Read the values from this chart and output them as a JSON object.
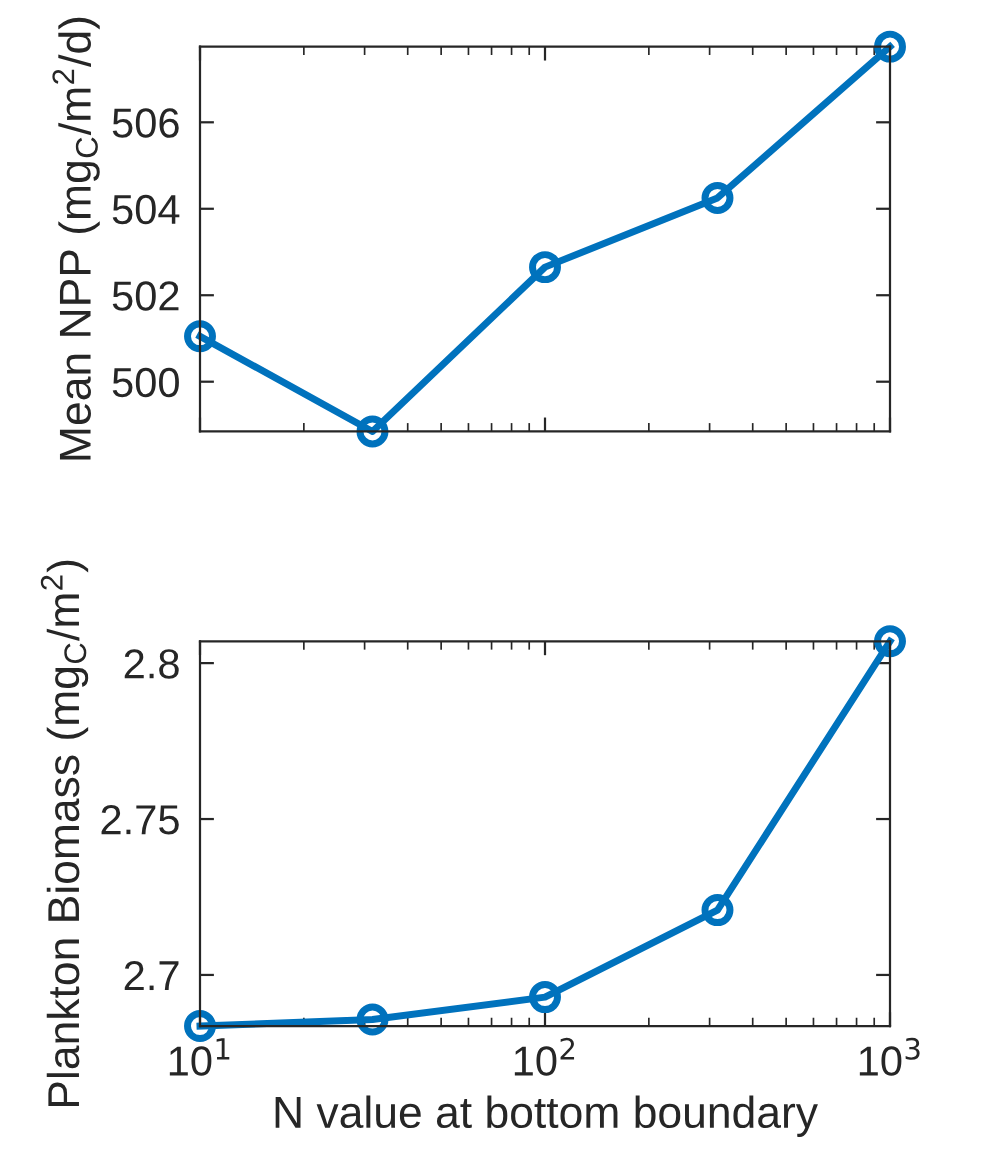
{
  "chart_data": [
    {
      "type": "line",
      "ylabel": "Mean NPP (mg$_{C}$/m$^{2}$/d)",
      "x": [
        10,
        31.62,
        100,
        316.2,
        1000
      ],
      "series": [
        {
          "color": "#0072bd",
          "values": [
            501.05,
            498.85,
            502.65,
            504.25,
            507.75
          ]
        }
      ],
      "log": "x",
      "xlim": [
        10,
        1000
      ],
      "xticks": [
        {
          "value": 10,
          "label": null
        },
        {
          "value": 100,
          "label": null
        },
        {
          "value": 1000,
          "label": null
        }
      ],
      "ylim": [
        498.85,
        507.75
      ],
      "yticks": [
        500,
        502,
        504,
        506
      ],
      "tick_labels": "y",
      "marker": "circle",
      "line_style": "solid",
      "grid": false
    },
    {
      "type": "line",
      "xlabel": "N value at bottom boundary",
      "ylabel": "Plankton Biomass (mg$_{C}$/m$^{2}$)",
      "x": [
        10,
        31.62,
        100,
        316.2,
        1000
      ],
      "series": [
        {
          "color": "#0072bd",
          "values": [
            2.6836,
            2.6857,
            2.6929,
            2.7208,
            2.807
          ]
        }
      ],
      "log": "x",
      "xlim": [
        10,
        1000
      ],
      "xticks": [
        {
          "value": 10,
          "label": "10$^{1}$"
        },
        {
          "value": 100,
          "label": "10$^{2}$"
        },
        {
          "value": 1000,
          "label": "10$^{3}$"
        }
      ],
      "ylim": [
        2.6836,
        2.807
      ],
      "yticks": [
        2.7,
        2.75,
        2.8
      ],
      "marker": "circle",
      "line_style": "solid",
      "grid": false
    }
  ]
}
